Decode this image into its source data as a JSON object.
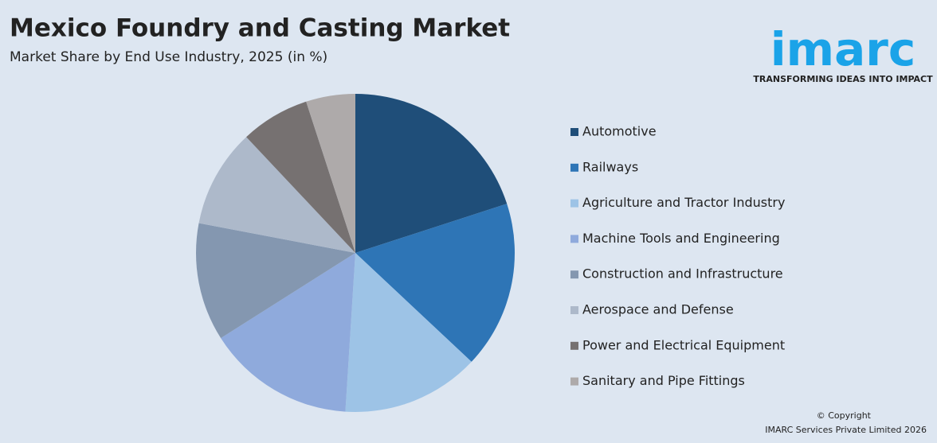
{
  "chart_data": {
    "type": "pie",
    "title": "Mexico Foundry and Casting Market",
    "subtitle": "Market Share by End Use Industry, 2025 (in %)",
    "categories": [
      "Automotive",
      "Railways",
      "Agriculture and Tractor Industry",
      "Machine Tools and Engineering",
      "Construction and Infrastructure",
      "Aerospace and Defense",
      "Power and Electrical Equipment",
      "Sanitary and Pipe Fittings"
    ],
    "values": [
      20,
      17,
      14,
      15,
      12,
      10,
      7,
      5
    ],
    "colors": [
      "#1f4e79",
      "#2e75b6",
      "#9dc3e6",
      "#8faadc",
      "#8497b0",
      "#adb9ca",
      "#767171",
      "#aeaaaa"
    ],
    "legend": "right"
  },
  "logo": {
    "name": "imarc",
    "tagline": "TRANSFORMING IDEAS INTO IMPACT"
  },
  "footer": {
    "line1": "© Copyright",
    "line2": "IMARC Services Private Limited 2026"
  }
}
